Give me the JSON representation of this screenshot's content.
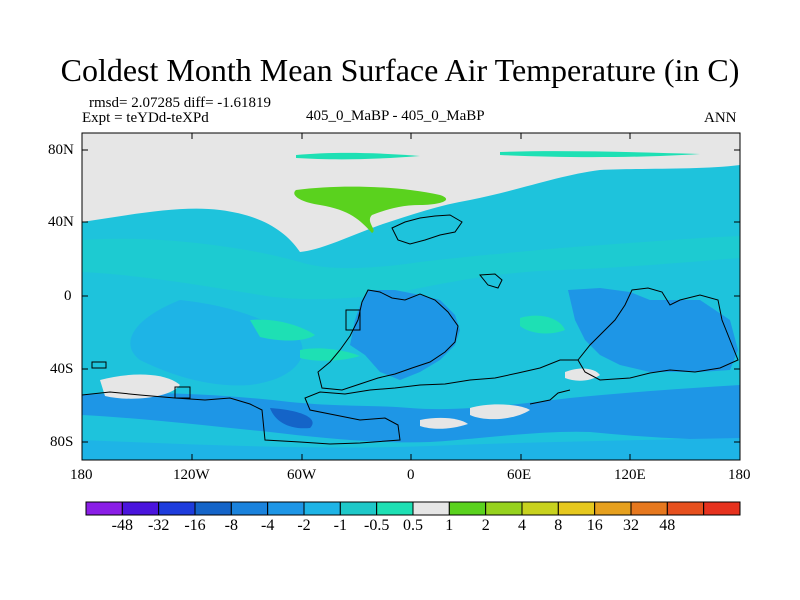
{
  "figure": {
    "title": "Coldest Month Mean Surface Air Temperature (in C)",
    "stats": "rmsd= 2.07285 diff= -1.61819",
    "experiment": "Expt = teYDd-teXPd",
    "center_label": "405_0_MaBP - 405_0_MaBP",
    "season": "ANN"
  },
  "axes": {
    "y_ticks": [
      "80N",
      "40N",
      "0",
      "40S",
      "80S"
    ],
    "x_ticks": [
      "180",
      "120W",
      "60W",
      "0",
      "60E",
      "120E",
      "180"
    ]
  },
  "colorbar": {
    "labels": [
      "-48",
      "-32",
      "-16",
      "-8",
      "-4",
      "-2",
      "-1",
      "-0.5",
      "0.5",
      "1",
      "2",
      "4",
      "8",
      "16",
      "32",
      "48"
    ],
    "colors": [
      "#8a1ee6",
      "#4a14dc",
      "#1e3cdc",
      "#1464c8",
      "#1a82dc",
      "#1e96e6",
      "#1eb4e6",
      "#1ec8c8",
      "#1ee0b4",
      "#e6e6e6",
      "#5ad21e",
      "#96d21e",
      "#c8d21e",
      "#e6c81e",
      "#e6a01e",
      "#e6781e",
      "#e6501e",
      "#e6321e"
    ]
  },
  "colors": {
    "ocean_base": "#1ec3dc",
    "land_low": "#1e96e6",
    "deep": "#1464c8",
    "neutral": "#e6e6e6",
    "warm": "#5ad21e",
    "mint": "#1ee0b4"
  }
}
